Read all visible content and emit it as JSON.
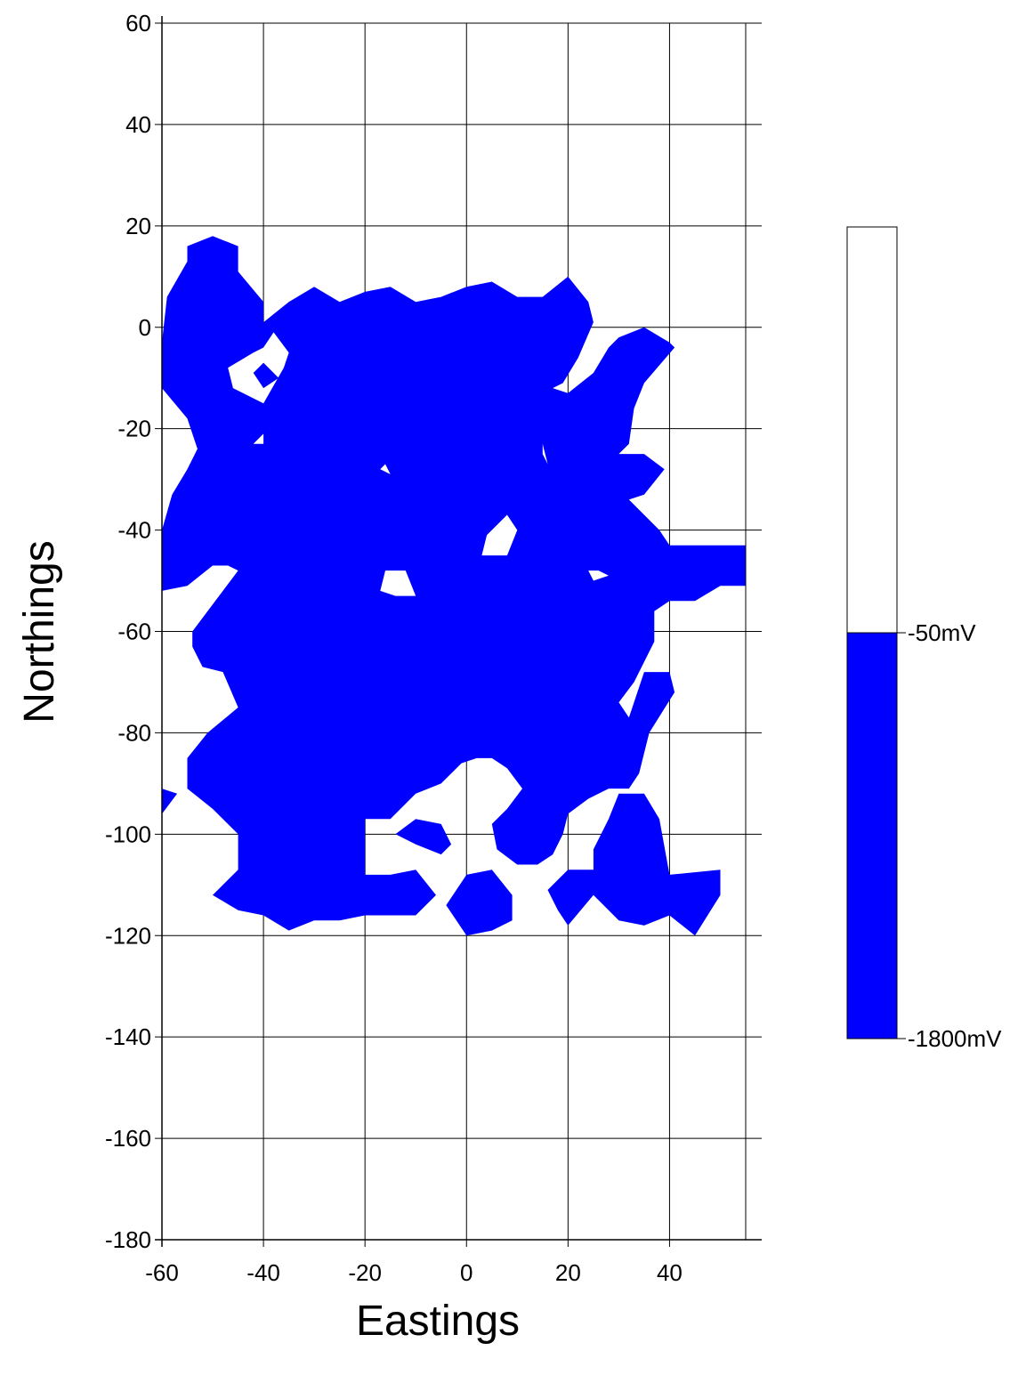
{
  "chart_data": {
    "type": "contour",
    "xlabel": "Eastings",
    "ylabel": "Northings",
    "xlim": [
      -60,
      55
    ],
    "ylim": [
      -180,
      60
    ],
    "xticks": [
      -60,
      -40,
      -20,
      0,
      20,
      40
    ],
    "yticks": [
      60,
      40,
      20,
      0,
      -20,
      -40,
      -60,
      -80,
      -100,
      -120,
      -140,
      -160,
      -180
    ],
    "grid": true,
    "fill_color": "#0000ff",
    "legend": {
      "position": "right",
      "levels": [
        {
          "label": "-50mV",
          "color": "#ffffff"
        },
        {
          "label": "-1800mV",
          "color": "#0000ff"
        }
      ]
    },
    "regions": [
      {
        "name": "main",
        "points": [
          [
            -60,
            -3
          ],
          [
            -59,
            6
          ],
          [
            -55,
            13
          ],
          [
            -55,
            16
          ],
          [
            -50,
            18
          ],
          [
            -45,
            16
          ],
          [
            -45,
            11
          ],
          [
            -40,
            5
          ],
          [
            -40,
            1
          ],
          [
            -35,
            5
          ],
          [
            -30,
            8
          ],
          [
            -25,
            5
          ],
          [
            -20,
            7
          ],
          [
            -15,
            8
          ],
          [
            -10,
            5
          ],
          [
            -5,
            6
          ],
          [
            0,
            8
          ],
          [
            5,
            9
          ],
          [
            10,
            6
          ],
          [
            15,
            6
          ],
          [
            20,
            10
          ],
          [
            24,
            5
          ],
          [
            25,
            1
          ],
          [
            22,
            -6
          ],
          [
            19,
            -11
          ],
          [
            17,
            -12
          ],
          [
            20,
            -13
          ],
          [
            25,
            -9
          ],
          [
            28,
            -4
          ],
          [
            30,
            -2
          ],
          [
            35,
            0
          ],
          [
            40,
            -3
          ],
          [
            41,
            -4
          ],
          [
            35,
            -11
          ],
          [
            33,
            -16
          ],
          [
            32,
            -23
          ],
          [
            30,
            -25
          ],
          [
            35,
            -25
          ],
          [
            39,
            -28
          ],
          [
            35,
            -33
          ],
          [
            32,
            -34
          ],
          [
            35,
            -37
          ],
          [
            38,
            -40
          ],
          [
            40,
            -43
          ],
          [
            55,
            -43
          ],
          [
            55,
            -51
          ],
          [
            50,
            -51
          ],
          [
            45,
            -54
          ],
          [
            40,
            -54
          ],
          [
            37,
            -56
          ],
          [
            37,
            -62
          ],
          [
            35,
            -66
          ],
          [
            33,
            -70
          ],
          [
            30,
            -74
          ],
          [
            32,
            -77
          ],
          [
            35,
            -68
          ],
          [
            40,
            -68
          ],
          [
            41,
            -72
          ],
          [
            36,
            -80
          ],
          [
            34,
            -88
          ],
          [
            32,
            -91
          ],
          [
            28,
            -91
          ],
          [
            24,
            -93
          ],
          [
            20,
            -96
          ],
          [
            19,
            -100
          ],
          [
            17,
            -104
          ],
          [
            14,
            -106
          ],
          [
            10,
            -106
          ],
          [
            6,
            -103
          ],
          [
            5,
            -98
          ],
          [
            8,
            -95
          ],
          [
            11,
            -91
          ],
          [
            8,
            -87
          ],
          [
            5,
            -85
          ],
          [
            2,
            -85
          ],
          [
            -1,
            -86
          ],
          [
            -5,
            -90
          ],
          [
            -10,
            -92
          ],
          [
            -15,
            -97
          ],
          [
            -20,
            -97
          ],
          [
            -20,
            -108
          ],
          [
            -15,
            -108
          ],
          [
            -10,
            -107
          ],
          [
            -6,
            -112
          ],
          [
            -10,
            -116
          ],
          [
            -20,
            -116
          ],
          [
            -25,
            -117
          ],
          [
            -30,
            -117
          ],
          [
            -35,
            -119
          ],
          [
            -40,
            -116
          ],
          [
            -45,
            -115
          ],
          [
            -50,
            -112
          ],
          [
            -45,
            -107
          ],
          [
            -45,
            -100
          ],
          [
            -50,
            -95
          ],
          [
            -55,
            -91
          ],
          [
            -55,
            -85
          ],
          [
            -51,
            -80
          ],
          [
            -45,
            -75
          ],
          [
            -48,
            -68
          ],
          [
            -52,
            -67
          ],
          [
            -54,
            -63
          ],
          [
            -54,
            -60
          ],
          [
            -45,
            -48
          ],
          [
            -47,
            -47
          ],
          [
            -50,
            -47
          ],
          [
            -55,
            -51
          ],
          [
            -60,
            -52
          ],
          [
            -60,
            -40
          ],
          [
            -58,
            -33
          ],
          [
            -55,
            -28
          ],
          [
            -53,
            -24
          ],
          [
            -55,
            -18
          ],
          [
            -60,
            -12
          ]
        ]
      },
      {
        "name": "southwest-fragment",
        "points": [
          [
            -60,
            -91
          ],
          [
            -57,
            -92
          ],
          [
            -60,
            -96
          ]
        ]
      },
      {
        "name": "south-center-blob",
        "points": [
          [
            -10,
            -102
          ],
          [
            -5,
            -104
          ],
          [
            -3,
            -102
          ],
          [
            -5,
            -98
          ],
          [
            -10,
            -97
          ],
          [
            -14,
            -100
          ]
        ]
      },
      {
        "name": "south-middle-blob",
        "points": [
          [
            0,
            -108
          ],
          [
            5,
            -107
          ],
          [
            9,
            -112
          ],
          [
            9,
            -117
          ],
          [
            5,
            -119
          ],
          [
            0,
            -120
          ],
          [
            -4,
            -114
          ]
        ]
      },
      {
        "name": "southeast-blob",
        "points": [
          [
            20,
            -107
          ],
          [
            25,
            -107
          ],
          [
            25,
            -103
          ],
          [
            28,
            -97
          ],
          [
            30,
            -92
          ],
          [
            35,
            -92
          ],
          [
            38,
            -97
          ],
          [
            40,
            -108
          ],
          [
            50,
            -107
          ],
          [
            50,
            -112
          ],
          [
            45,
            -120
          ],
          [
            40,
            -116
          ],
          [
            35,
            -118
          ],
          [
            30,
            -117
          ],
          [
            25,
            -112
          ],
          [
            20,
            -118
          ],
          [
            18,
            -115
          ],
          [
            16,
            -111
          ]
        ]
      }
    ],
    "holes": [
      {
        "name": "northwest-ring",
        "points": [
          [
            -40,
            -4
          ],
          [
            -38,
            -1
          ],
          [
            -35,
            -5
          ],
          [
            -36,
            -8
          ],
          [
            -40,
            -15
          ],
          [
            -46,
            -12
          ],
          [
            -47,
            -8
          ],
          [
            -42,
            -5
          ]
        ]
      },
      {
        "name": "northwest-island",
        "points": [
          [
            -40,
            -7
          ],
          [
            -37,
            -10
          ],
          [
            -40,
            -12
          ],
          [
            -42,
            -9
          ]
        ]
      },
      {
        "name": "west-notch",
        "points": [
          [
            -40,
            -21
          ],
          [
            -42,
            -23
          ],
          [
            -40,
            -23
          ]
        ]
      },
      {
        "name": "north-hole-small",
        "points": [
          [
            -17,
            -28
          ],
          [
            -15,
            -29
          ],
          [
            -16,
            -27
          ]
        ]
      },
      {
        "name": "northeast-hole",
        "points": [
          [
            15,
            -23
          ],
          [
            16,
            -27
          ],
          [
            15,
            -25
          ]
        ]
      },
      {
        "name": "center-hole-east",
        "points": [
          [
            8,
            -37
          ],
          [
            10,
            -40
          ],
          [
            8,
            -45
          ],
          [
            3,
            -45
          ],
          [
            4,
            -41
          ],
          [
            6,
            -39
          ]
        ]
      },
      {
        "name": "center-hole-west",
        "points": [
          [
            -16,
            -48
          ],
          [
            -12,
            -48
          ],
          [
            -10,
            -53
          ],
          [
            -14,
            -53
          ],
          [
            -17,
            -52
          ]
        ]
      },
      {
        "name": "east-hole",
        "points": [
          [
            26,
            -48
          ],
          [
            28,
            -49
          ],
          [
            25,
            -50
          ],
          [
            24,
            -48
          ]
        ]
      }
    ]
  }
}
